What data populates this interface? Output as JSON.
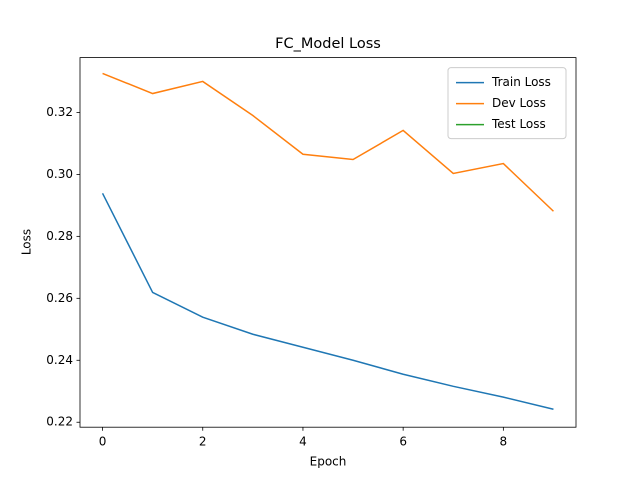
{
  "chart_data": {
    "type": "line",
    "title": "FC_Model Loss",
    "xlabel": "Epoch",
    "ylabel": "Loss",
    "x": [
      0,
      1,
      2,
      3,
      4,
      5,
      6,
      7,
      8,
      9
    ],
    "series": [
      {
        "name": "Train Loss",
        "color": "#1f77b4",
        "values": [
          0.2939,
          0.2619,
          0.2539,
          0.2484,
          0.2442,
          0.24,
          0.2355,
          0.2316,
          0.2281,
          0.2242
        ]
      },
      {
        "name": "Dev Loss",
        "color": "#ff7f0e",
        "values": [
          0.3326,
          0.3261,
          0.33,
          0.319,
          0.3065,
          0.3048,
          0.3142,
          0.3003,
          0.3035,
          0.2881
        ]
      },
      {
        "name": "Test Loss",
        "color": "#2ca02c",
        "values": [
          null,
          null,
          null,
          null,
          null,
          null,
          null,
          null,
          null,
          null
        ]
      }
    ],
    "xlim": [
      -0.45,
      9.45
    ],
    "xticks": [
      0,
      2,
      4,
      6,
      8
    ],
    "ylim": [
      0.2184,
      0.3377
    ],
    "yticks": [
      0.22,
      0.24,
      0.26,
      0.28,
      {
        "value": 0.3,
        "label": "0.30"
      },
      0.32
    ],
    "legend": "upper right"
  }
}
